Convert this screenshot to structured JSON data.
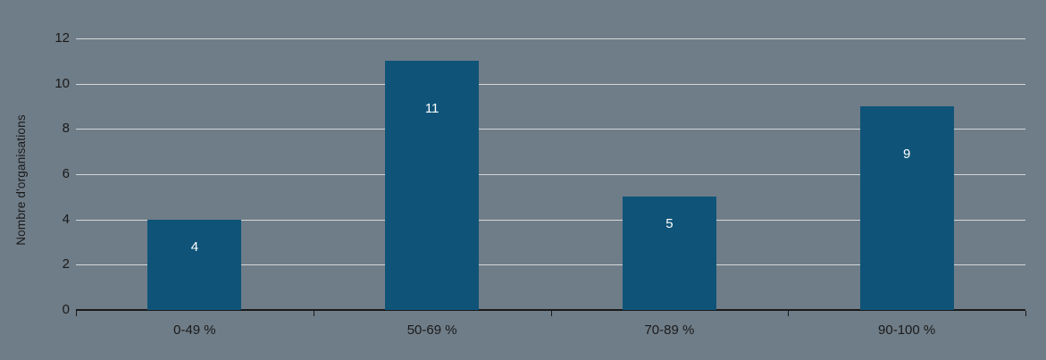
{
  "chart_data": {
    "type": "bar",
    "categories": [
      "0-49 %",
      "50-69 %",
      "70-89 %",
      "90-100 %"
    ],
    "values": [
      4,
      11,
      5,
      9
    ],
    "title": "",
    "xlabel": "",
    "ylabel": "Nombre d'organisations",
    "ylim": [
      0,
      12
    ],
    "ytick_step": 2,
    "grid": true,
    "legend": "none",
    "colors": {
      "background": "#6f7d88",
      "bar": "#0f5478",
      "gridline": "#d3d7da",
      "axis": "#1a1a1a",
      "text": "#1a1a1a",
      "bar_label": "#ffffff"
    }
  }
}
